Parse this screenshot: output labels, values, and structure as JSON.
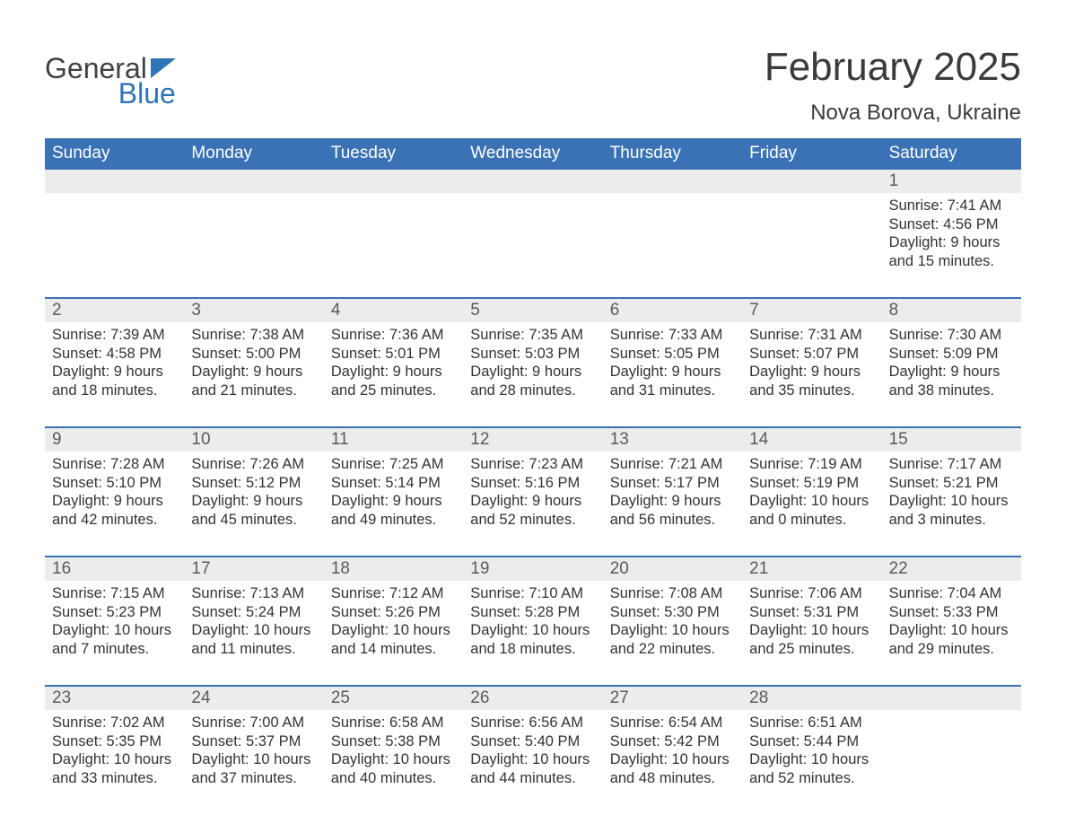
{
  "logo": {
    "part1": "General",
    "part2": "Blue"
  },
  "title": "February 2025",
  "location": "Nova Borova, Ukraine",
  "colors": {
    "header_bg": "#3a72b5",
    "header_text": "#ffffff",
    "week_border": "#3a72b5",
    "daynum_bg": "#ececec",
    "daynum_text": "#5b5b5b",
    "body_text": "#333333",
    "logo_gray": "#414141",
    "logo_blue": "#2f74b5",
    "page_bg": "#ffffff"
  },
  "weekdays": [
    "Sunday",
    "Monday",
    "Tuesday",
    "Wednesday",
    "Thursday",
    "Friday",
    "Saturday"
  ],
  "weeks": [
    [
      {
        "day": "",
        "sunrise": "",
        "sunset": "",
        "daylight": ""
      },
      {
        "day": "",
        "sunrise": "",
        "sunset": "",
        "daylight": ""
      },
      {
        "day": "",
        "sunrise": "",
        "sunset": "",
        "daylight": ""
      },
      {
        "day": "",
        "sunrise": "",
        "sunset": "",
        "daylight": ""
      },
      {
        "day": "",
        "sunrise": "",
        "sunset": "",
        "daylight": ""
      },
      {
        "day": "",
        "sunrise": "",
        "sunset": "",
        "daylight": ""
      },
      {
        "day": "1",
        "sunrise": "Sunrise: 7:41 AM",
        "sunset": "Sunset: 4:56 PM",
        "daylight": "Daylight: 9 hours and 15 minutes."
      }
    ],
    [
      {
        "day": "2",
        "sunrise": "Sunrise: 7:39 AM",
        "sunset": "Sunset: 4:58 PM",
        "daylight": "Daylight: 9 hours and 18 minutes."
      },
      {
        "day": "3",
        "sunrise": "Sunrise: 7:38 AM",
        "sunset": "Sunset: 5:00 PM",
        "daylight": "Daylight: 9 hours and 21 minutes."
      },
      {
        "day": "4",
        "sunrise": "Sunrise: 7:36 AM",
        "sunset": "Sunset: 5:01 PM",
        "daylight": "Daylight: 9 hours and 25 minutes."
      },
      {
        "day": "5",
        "sunrise": "Sunrise: 7:35 AM",
        "sunset": "Sunset: 5:03 PM",
        "daylight": "Daylight: 9 hours and 28 minutes."
      },
      {
        "day": "6",
        "sunrise": "Sunrise: 7:33 AM",
        "sunset": "Sunset: 5:05 PM",
        "daylight": "Daylight: 9 hours and 31 minutes."
      },
      {
        "day": "7",
        "sunrise": "Sunrise: 7:31 AM",
        "sunset": "Sunset: 5:07 PM",
        "daylight": "Daylight: 9 hours and 35 minutes."
      },
      {
        "day": "8",
        "sunrise": "Sunrise: 7:30 AM",
        "sunset": "Sunset: 5:09 PM",
        "daylight": "Daylight: 9 hours and 38 minutes."
      }
    ],
    [
      {
        "day": "9",
        "sunrise": "Sunrise: 7:28 AM",
        "sunset": "Sunset: 5:10 PM",
        "daylight": "Daylight: 9 hours and 42 minutes."
      },
      {
        "day": "10",
        "sunrise": "Sunrise: 7:26 AM",
        "sunset": "Sunset: 5:12 PM",
        "daylight": "Daylight: 9 hours and 45 minutes."
      },
      {
        "day": "11",
        "sunrise": "Sunrise: 7:25 AM",
        "sunset": "Sunset: 5:14 PM",
        "daylight": "Daylight: 9 hours and 49 minutes."
      },
      {
        "day": "12",
        "sunrise": "Sunrise: 7:23 AM",
        "sunset": "Sunset: 5:16 PM",
        "daylight": "Daylight: 9 hours and 52 minutes."
      },
      {
        "day": "13",
        "sunrise": "Sunrise: 7:21 AM",
        "sunset": "Sunset: 5:17 PM",
        "daylight": "Daylight: 9 hours and 56 minutes."
      },
      {
        "day": "14",
        "sunrise": "Sunrise: 7:19 AM",
        "sunset": "Sunset: 5:19 PM",
        "daylight": "Daylight: 10 hours and 0 minutes."
      },
      {
        "day": "15",
        "sunrise": "Sunrise: 7:17 AM",
        "sunset": "Sunset: 5:21 PM",
        "daylight": "Daylight: 10 hours and 3 minutes."
      }
    ],
    [
      {
        "day": "16",
        "sunrise": "Sunrise: 7:15 AM",
        "sunset": "Sunset: 5:23 PM",
        "daylight": "Daylight: 10 hours and 7 minutes."
      },
      {
        "day": "17",
        "sunrise": "Sunrise: 7:13 AM",
        "sunset": "Sunset: 5:24 PM",
        "daylight": "Daylight: 10 hours and 11 minutes."
      },
      {
        "day": "18",
        "sunrise": "Sunrise: 7:12 AM",
        "sunset": "Sunset: 5:26 PM",
        "daylight": "Daylight: 10 hours and 14 minutes."
      },
      {
        "day": "19",
        "sunrise": "Sunrise: 7:10 AM",
        "sunset": "Sunset: 5:28 PM",
        "daylight": "Daylight: 10 hours and 18 minutes."
      },
      {
        "day": "20",
        "sunrise": "Sunrise: 7:08 AM",
        "sunset": "Sunset: 5:30 PM",
        "daylight": "Daylight: 10 hours and 22 minutes."
      },
      {
        "day": "21",
        "sunrise": "Sunrise: 7:06 AM",
        "sunset": "Sunset: 5:31 PM",
        "daylight": "Daylight: 10 hours and 25 minutes."
      },
      {
        "day": "22",
        "sunrise": "Sunrise: 7:04 AM",
        "sunset": "Sunset: 5:33 PM",
        "daylight": "Daylight: 10 hours and 29 minutes."
      }
    ],
    [
      {
        "day": "23",
        "sunrise": "Sunrise: 7:02 AM",
        "sunset": "Sunset: 5:35 PM",
        "daylight": "Daylight: 10 hours and 33 minutes."
      },
      {
        "day": "24",
        "sunrise": "Sunrise: 7:00 AM",
        "sunset": "Sunset: 5:37 PM",
        "daylight": "Daylight: 10 hours and 37 minutes."
      },
      {
        "day": "25",
        "sunrise": "Sunrise: 6:58 AM",
        "sunset": "Sunset: 5:38 PM",
        "daylight": "Daylight: 10 hours and 40 minutes."
      },
      {
        "day": "26",
        "sunrise": "Sunrise: 6:56 AM",
        "sunset": "Sunset: 5:40 PM",
        "daylight": "Daylight: 10 hours and 44 minutes."
      },
      {
        "day": "27",
        "sunrise": "Sunrise: 6:54 AM",
        "sunset": "Sunset: 5:42 PM",
        "daylight": "Daylight: 10 hours and 48 minutes."
      },
      {
        "day": "28",
        "sunrise": "Sunrise: 6:51 AM",
        "sunset": "Sunset: 5:44 PM",
        "daylight": "Daylight: 10 hours and 52 minutes."
      },
      {
        "day": "",
        "sunrise": "",
        "sunset": "",
        "daylight": ""
      }
    ]
  ]
}
